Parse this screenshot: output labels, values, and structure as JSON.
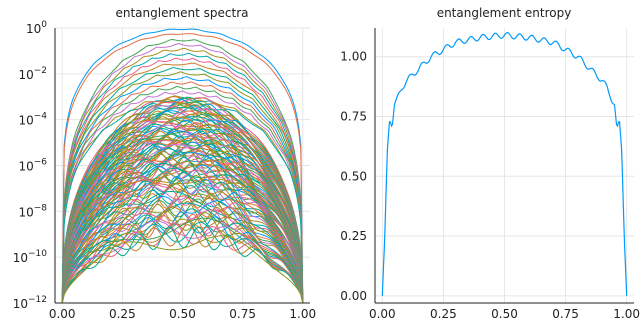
{
  "palette": [
    "#009AFA",
    "#E36F47",
    "#3EA44E",
    "#C371D2",
    "#AC8E18",
    "#00AAAE",
    "#ED5E93",
    "#C68225",
    "#00A98D",
    "#8E971D"
  ],
  "chart_data": [
    {
      "type": "line",
      "title": "entanglement spectra",
      "xlabel": "",
      "ylabel": "",
      "xlim": [
        -0.03,
        1.03
      ],
      "ylim": [
        1e-12,
        1
      ],
      "yscale": "log",
      "grid": true,
      "legend": "none",
      "x_ticks": [
        0.0,
        0.25,
        0.5,
        0.75,
        1.0
      ],
      "x_tick_labels": [
        "0.00",
        "0.25",
        "0.50",
        "0.75",
        "1.00"
      ],
      "y_ticks": [
        1e-12,
        1e-10,
        1e-08,
        1e-06,
        0.0001,
        0.01,
        1
      ],
      "y_tick_labels": [
        {
          "base": "10",
          "exp": "−12"
        },
        {
          "base": "10",
          "exp": "−10"
        },
        {
          "base": "10",
          "exp": "−8"
        },
        {
          "base": "10",
          "exp": "−6"
        },
        {
          "base": "10",
          "exp": "−4"
        },
        {
          "base": "10",
          "exp": "−2"
        },
        {
          "base": "10",
          "exp": "0"
        }
      ],
      "series_summary": {
        "count": 120,
        "x_range": [
          0,
          1
        ],
        "outer_band_log10": [
          -0.05,
          -3.0
        ],
        "dense_band_log10": [
          -3.0,
          -6.5
        ],
        "lower_band_log10": [
          -6.5,
          -9.0
        ],
        "lowest_curve_peak_log10": -9.2,
        "x_points_per_series": 120
      }
    },
    {
      "type": "line",
      "title": "entanglement entropy",
      "xlabel": "",
      "ylabel": "",
      "xlim": [
        -0.03,
        1.03
      ],
      "ylim": [
        -0.03,
        1.12
      ],
      "grid": true,
      "legend": "none",
      "x_ticks": [
        0.0,
        0.25,
        0.5,
        0.75,
        1.0
      ],
      "x_tick_labels": [
        "0.00",
        "0.25",
        "0.50",
        "0.75",
        "1.00"
      ],
      "y_ticks": [
        0.0,
        0.25,
        0.5,
        0.75,
        1.0
      ],
      "y_tick_labels": [
        "0.00",
        "0.25",
        "0.50",
        "0.75",
        "1.00"
      ],
      "series": [
        {
          "x": [
            0.0,
            0.01,
            0.02,
            0.03,
            0.04,
            0.05,
            0.06,
            0.08,
            0.1,
            0.15,
            0.2,
            0.25,
            0.3,
            0.35,
            0.4,
            0.45,
            0.5,
            0.55,
            0.6,
            0.65,
            0.7,
            0.75,
            0.8,
            0.85,
            0.9,
            0.92,
            0.94,
            0.95,
            0.96,
            0.97,
            0.98,
            0.99,
            1.0
          ],
          "y": [
            0.0,
            0.25,
            0.6,
            0.74,
            0.7,
            0.8,
            0.82,
            0.87,
            0.9,
            0.95,
            1.0,
            1.03,
            1.06,
            1.07,
            1.08,
            1.085,
            1.09,
            1.085,
            1.08,
            1.07,
            1.06,
            1.03,
            1.0,
            0.95,
            0.9,
            0.87,
            0.82,
            0.8,
            0.7,
            0.74,
            0.6,
            0.25,
            0.0
          ]
        }
      ]
    }
  ]
}
